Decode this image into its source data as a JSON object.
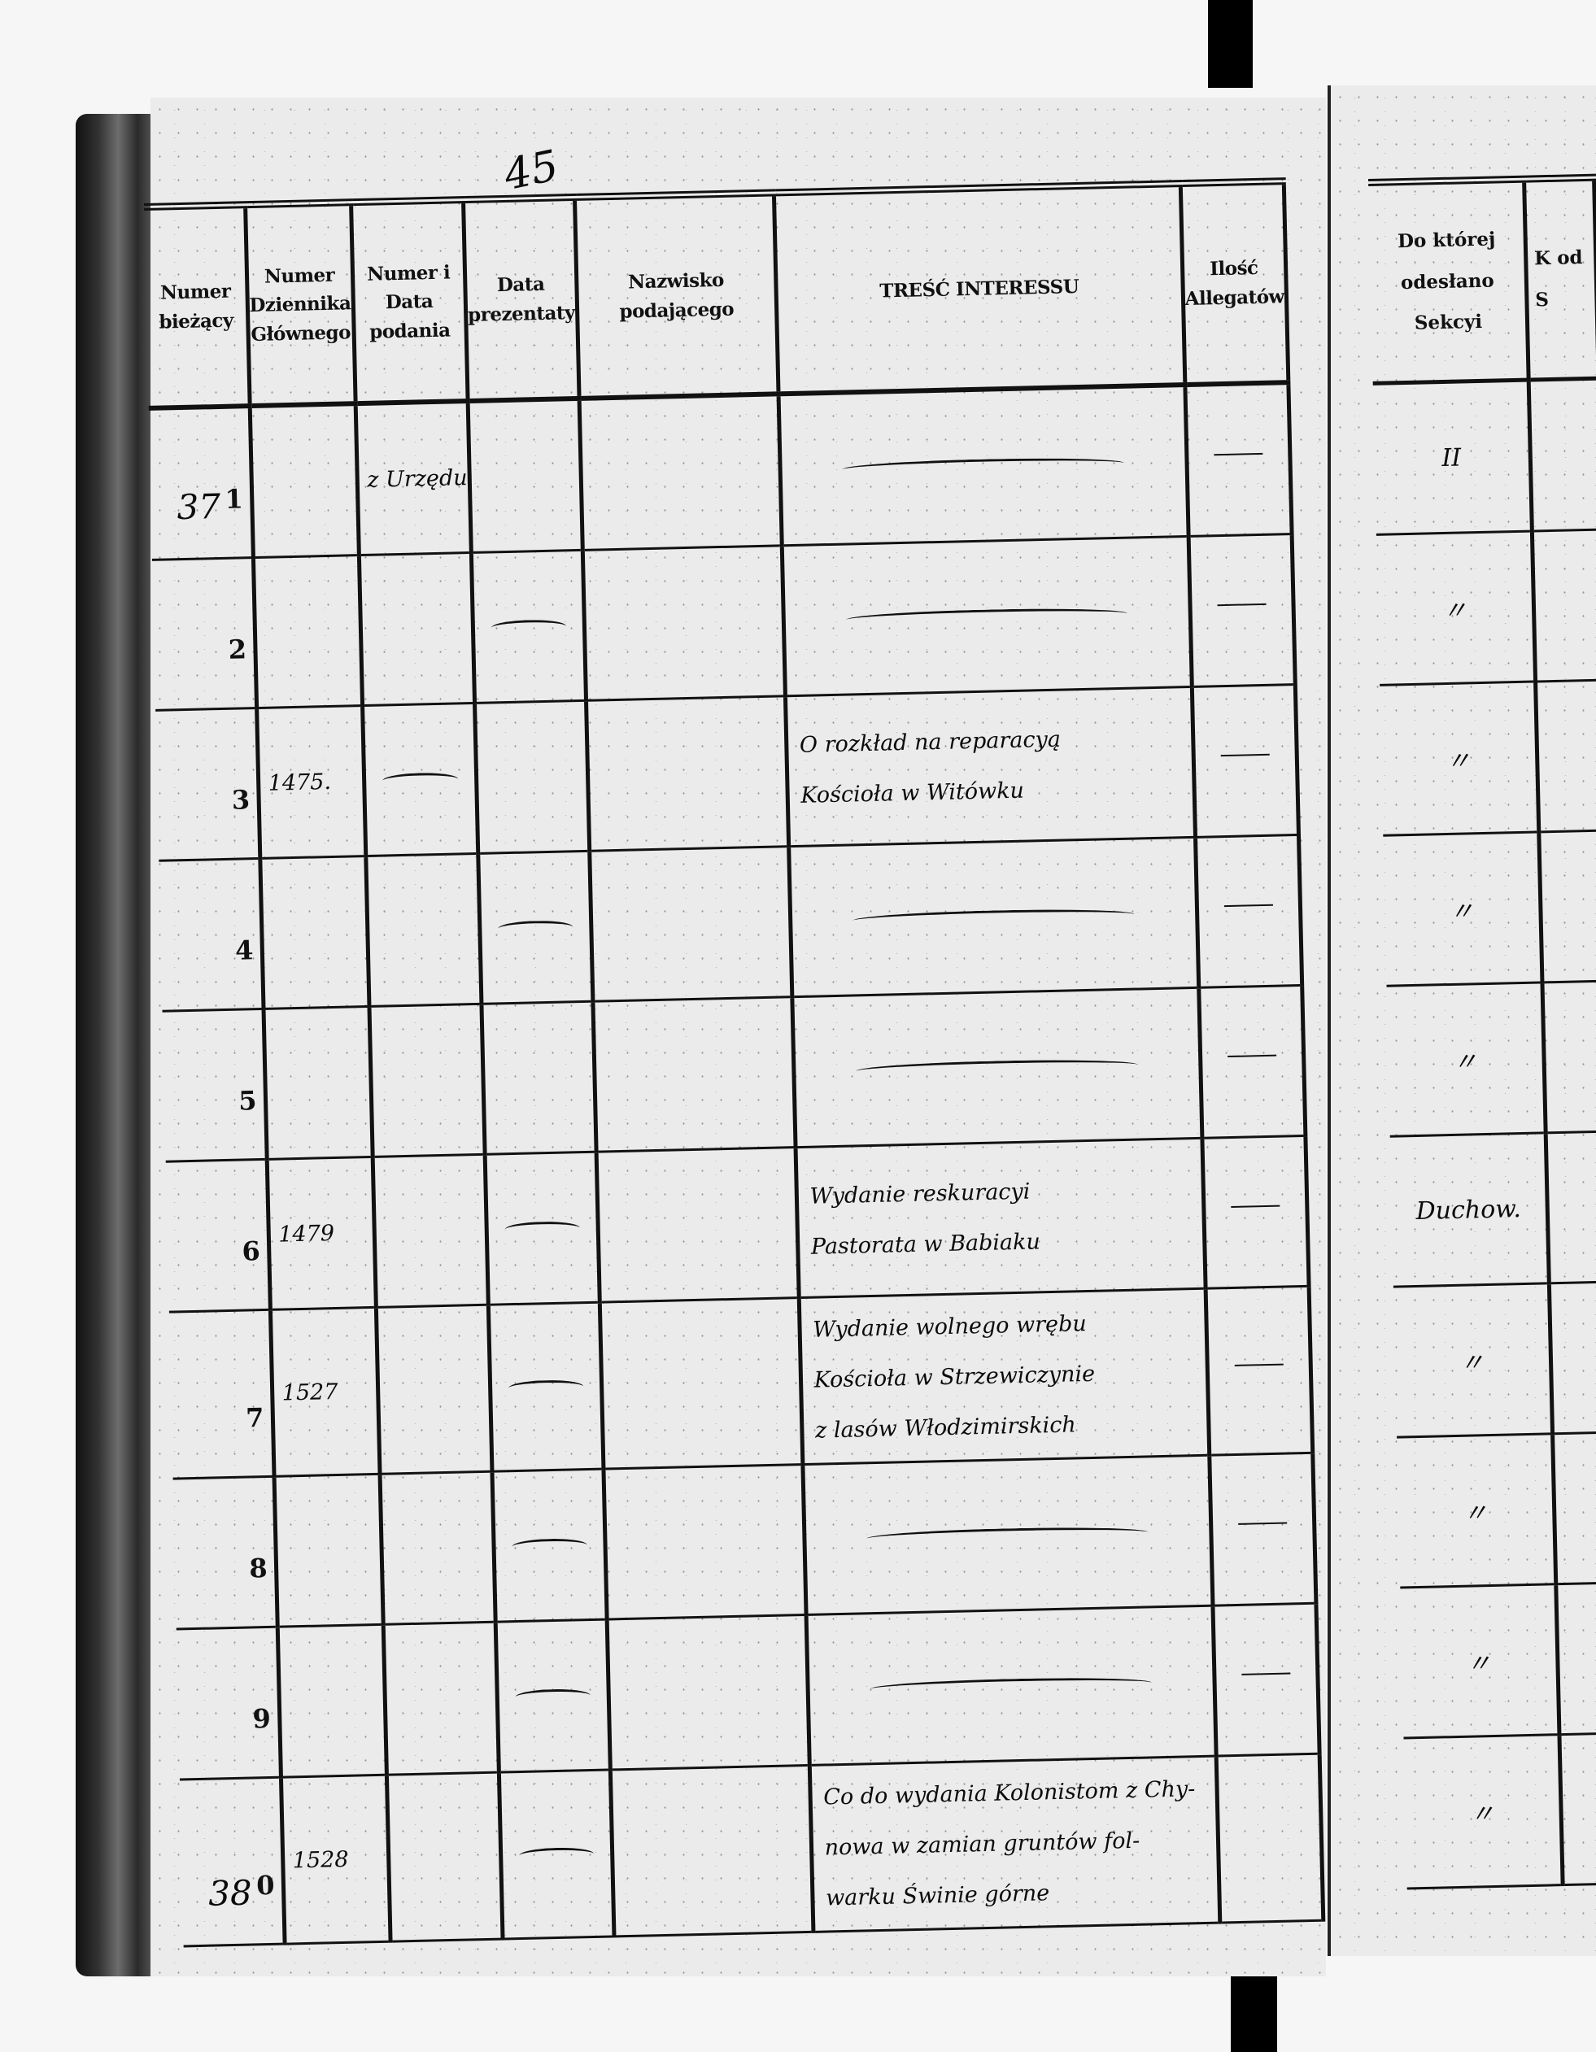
{
  "page_number": "45",
  "left_page": {
    "headers": [
      "Numer bieżący",
      "Numer Dziennika Głównego",
      "Numer i Data podania",
      "Data prezentaty",
      "Nazwisko podającego",
      "TREŚĆ INTERESSU",
      "Ilość Allegatów"
    ],
    "rows": [
      {
        "hand_num": "37",
        "print_num": "1",
        "dziennik": "",
        "numer_data": "z Urzędu",
        "data_prez": "",
        "tresc": [],
        "tresc_dash": "—",
        "ilosc": "—"
      },
      {
        "hand_num": "",
        "print_num": "2",
        "dziennik": "",
        "numer_data": "",
        "data_prez": "—",
        "tresc": [],
        "tresc_dash": "—",
        "ilosc": "—"
      },
      {
        "hand_num": "",
        "print_num": "3",
        "dziennik": "1475.",
        "numer_data": "—",
        "data_prez": "",
        "tresc": [
          "O rozkład na reparacyą",
          "Kościoła w Witówku"
        ],
        "tresc_dash": "",
        "ilosc": "—"
      },
      {
        "hand_num": "",
        "print_num": "4",
        "dziennik": "",
        "numer_data": "",
        "data_prez": "—",
        "tresc": [],
        "tresc_dash": "—",
        "ilosc": "—"
      },
      {
        "hand_num": "",
        "print_num": "5",
        "dziennik": "",
        "numer_data": "",
        "data_prez": "",
        "tresc": [],
        "tresc_dash": "—",
        "ilosc": "—"
      },
      {
        "hand_num": "",
        "print_num": "6",
        "dziennik": "1479",
        "numer_data": "",
        "data_prez": "—",
        "tresc": [
          "Wydanie reskuracyi",
          "Pastorata w Babiaku"
        ],
        "tresc_dash": "",
        "ilosc": "—"
      },
      {
        "hand_num": "",
        "print_num": "7",
        "dziennik": "1527",
        "numer_data": "",
        "data_prez": "—",
        "tresc": [
          "Wydanie wolnego wrębu",
          "Kościoła w Strzewiczynie",
          "z lasów Włodzimirskich"
        ],
        "tresc_dash": "",
        "ilosc": "—"
      },
      {
        "hand_num": "",
        "print_num": "8",
        "dziennik": "",
        "numer_data": "",
        "data_prez": "—",
        "tresc": [],
        "tresc_dash": "—",
        "ilosc": "—"
      },
      {
        "hand_num": "",
        "print_num": "9",
        "dziennik": "",
        "numer_data": "",
        "data_prez": "—",
        "tresc": [],
        "tresc_dash": "—",
        "ilosc": "—"
      },
      {
        "hand_num": "38",
        "print_num": "0",
        "dziennik": "1528",
        "numer_data": "",
        "data_prez": "—",
        "tresc": [
          "Co do wydania Kolonistom z Chy-",
          "nowa w zamian gruntów fol-",
          "warku Świnie górne"
        ],
        "tresc_dash": "",
        "ilosc": ""
      }
    ]
  },
  "right_page": {
    "headers": [
      "Do której odesłano Sekcyi",
      "K od S"
    ],
    "rows": [
      "II",
      "〃",
      "〃",
      "〃",
      "〃",
      "Duchow.",
      "〃",
      "〃",
      "〃",
      "〃"
    ]
  }
}
